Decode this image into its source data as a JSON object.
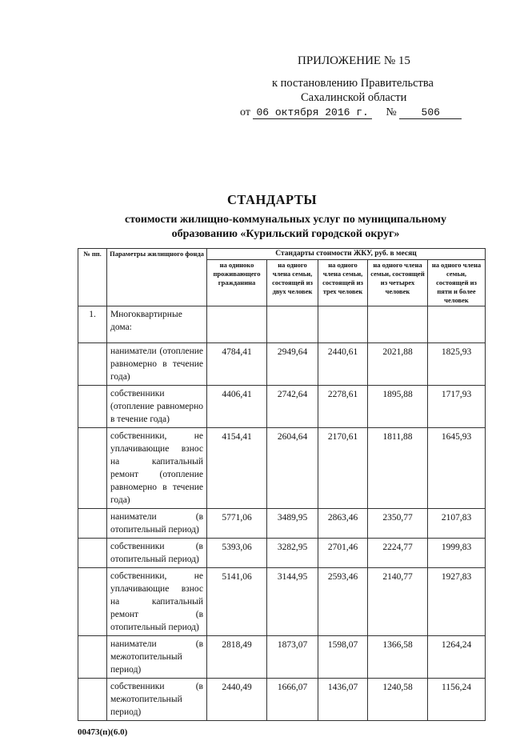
{
  "header": {
    "appendix": "ПРИЛОЖЕНИЕ № 15",
    "decree_line1": "к постановлению Правительства",
    "decree_line2": "Сахалинской области",
    "date_prefix": "от",
    "date": "06 октября 2016 г.",
    "number_prefix": "№",
    "number": "506"
  },
  "title": "СТАНДАРТЫ",
  "subtitle": "стоимости жилищно-коммунальных услуг по муниципальному образованию «Курильский городской округ»",
  "table": {
    "col_no": "№ пп.",
    "col_params": "Параметры жилищного фонда",
    "group_header": "Стандарты стоимости ЖКУ, руб. в месяц",
    "columns": [
      "на одиноко проживающего гражданина",
      "на одного члена семьи, состоящей из двух человек",
      "на одного члена семьи, состоящей из трех человек",
      "на одного члена семьи, состоящей из четырех человек",
      "на одного члена семьи, состоящей из пяти и более человек"
    ],
    "section": {
      "no": "1.",
      "label": "Многоквартирные дома:"
    },
    "rows": [
      {
        "label": "наниматели (отопление равномерно в течение года)",
        "values": [
          "4784,41",
          "2949,64",
          "2440,61",
          "2021,88",
          "1825,93"
        ]
      },
      {
        "label": "собственники (отопление равномерно в течение года)",
        "values": [
          "4406,41",
          "2742,64",
          "2278,61",
          "1895,88",
          "1717,93"
        ]
      },
      {
        "label": "собственники, не уплачивающие взнос на капитальный ремонт (отопление равномерно в течение года)",
        "values": [
          "4154,41",
          "2604,64",
          "2170,61",
          "1811,88",
          "1645,93"
        ]
      },
      {
        "label": "наниматели (в отопительный период)",
        "values": [
          "5771,06",
          "3489,95",
          "2863,46",
          "2350,77",
          "2107,83"
        ]
      },
      {
        "label": "собственники (в отопительный период)",
        "values": [
          "5393,06",
          "3282,95",
          "2701,46",
          "2224,77",
          "1999,83"
        ]
      },
      {
        "label": "собственники, не уплачивающие взнос на капитальный ремонт (в отопительный период)",
        "values": [
          "5141,06",
          "3144,95",
          "2593,46",
          "2140,77",
          "1927,83"
        ]
      },
      {
        "label": "наниматели (в межотопительный период)",
        "values": [
          "2818,49",
          "1873,07",
          "1598,07",
          "1366,58",
          "1264,24"
        ]
      },
      {
        "label": "собственники (в межотопительный период)",
        "values": [
          "2440,49",
          "1666,07",
          "1436,07",
          "1240,58",
          "1156,24"
        ]
      }
    ]
  },
  "footer": "00473(п)(6.0)"
}
